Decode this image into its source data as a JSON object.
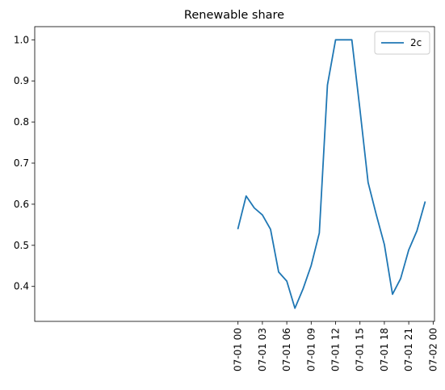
{
  "chart_data": {
    "type": "line",
    "title": "Renewable share",
    "xlabel": "",
    "ylabel": "",
    "x": [
      "07-01 00:00",
      "07-01 01:00",
      "07-01 02:00",
      "07-01 03:00",
      "07-01 04:00",
      "07-01 05:00",
      "07-01 06:00",
      "07-01 07:00",
      "07-01 08:00",
      "07-01 09:00",
      "07-01 10:00",
      "07-01 11:00",
      "07-01 12:00",
      "07-01 13:00",
      "07-01 14:00",
      "07-01 15:00",
      "07-01 16:00",
      "07-01 17:00",
      "07-01 18:00",
      "07-01 19:00",
      "07-01 20:00",
      "07-01 21:00",
      "07-01 22:00",
      "07-01 23:00"
    ],
    "series": [
      {
        "name": "2c",
        "color": "#1f77b4",
        "values": [
          0.541,
          0.62,
          0.591,
          0.574,
          0.539,
          0.435,
          0.413,
          0.347,
          0.394,
          0.451,
          0.53,
          0.89,
          1.0,
          1.0,
          1.0,
          0.83,
          0.653,
          0.575,
          0.502,
          0.381,
          0.419,
          0.489,
          0.535,
          0.605
        ]
      }
    ],
    "xticks": [
      "07-01 00",
      "07-01 03",
      "07-01 06",
      "07-01 09",
      "07-01 12",
      "07-01 15",
      "07-01 18",
      "07-01 21",
      "07-02 00"
    ],
    "yticks": [
      "0.4",
      "0.5",
      "0.6",
      "0.7",
      "0.8",
      "0.9",
      "1.0"
    ],
    "ylim": [
      0.315,
      1.032
    ],
    "xlim": [
      "06-30 23:00",
      "07-02 00:10"
    ],
    "grid": false,
    "legend_position": "top-right"
  }
}
